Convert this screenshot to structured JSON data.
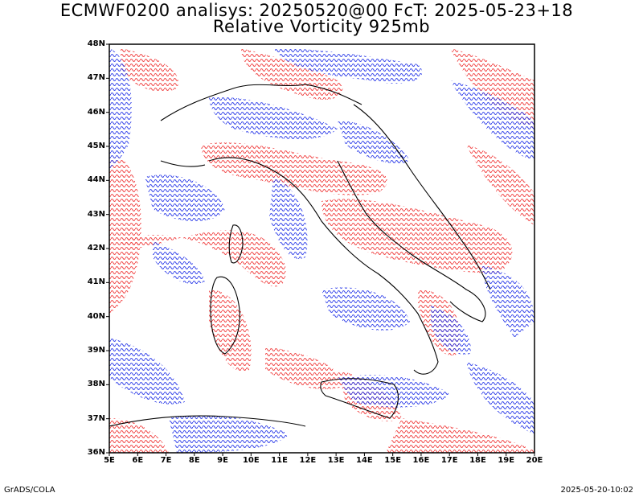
{
  "title_line1": "ECMWF0200 analisys: 20250520@00 FcT: 2025-05-23+18",
  "title_line2": "Relative Vorticity 925mb",
  "map": {
    "region": "Italy and surrounding seas",
    "lon_range": [
      5,
      20
    ],
    "lat_range": [
      36,
      48
    ],
    "positive_contour_color": "#f03838",
    "negative_contour_color": "#2838e8",
    "coastline_color": "#000000"
  },
  "lat_labels": [
    "48N",
    "47N",
    "46N",
    "45N",
    "44N",
    "43N",
    "42N",
    "41N",
    "40N",
    "39N",
    "38N",
    "37N",
    "36N"
  ],
  "lon_labels": [
    "5E",
    "6E",
    "7E",
    "8E",
    "9E",
    "10E",
    "11E",
    "12E",
    "13E",
    "14E",
    "15E",
    "16E",
    "17E",
    "18E",
    "19E",
    "20E"
  ],
  "footer": {
    "left": "GrADS/COLA",
    "right": "2025-05-20-10:02"
  }
}
